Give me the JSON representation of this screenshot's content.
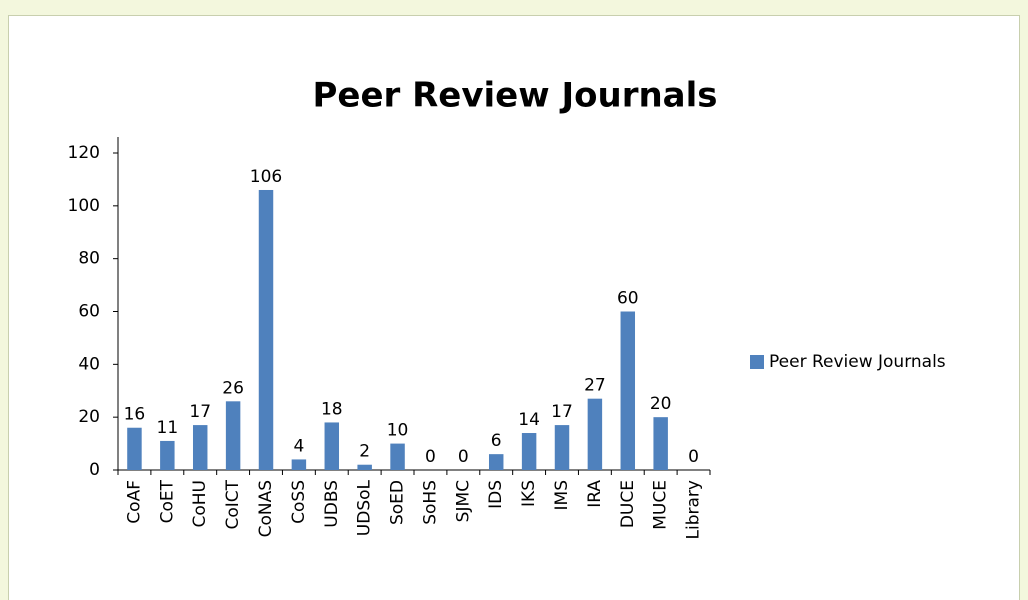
{
  "chart_data": {
    "type": "bar",
    "title": "Peer Review Journals",
    "categories": [
      "CoAF",
      "CoET",
      "CoHU",
      "CoICT",
      "CoNAS",
      "CoSS",
      "UDBS",
      "UDSoL",
      "SoED",
      "SoHS",
      "SJMC",
      "IDS",
      "IKS",
      "IMS",
      "IRA",
      "DUCE",
      "MUCE",
      "Library"
    ],
    "series": [
      {
        "name": "Peer Review Journals",
        "color": "#4f81bd",
        "values": [
          16,
          11,
          17,
          26,
          106,
          4,
          18,
          2,
          10,
          0,
          0,
          6,
          14,
          17,
          27,
          60,
          20,
          0
        ]
      }
    ],
    "ylim": [
      0,
      120
    ],
    "yticks": [
      0,
      20,
      40,
      60,
      80,
      100,
      120
    ],
    "legend": "right"
  }
}
